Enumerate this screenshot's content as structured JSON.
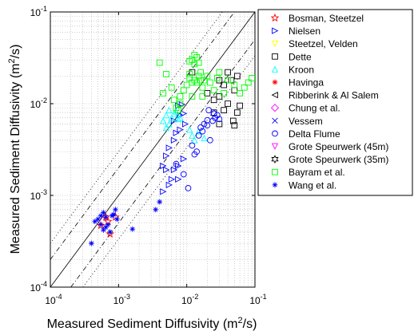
{
  "chart_data": {
    "type": "scatter",
    "xlabel": "Measured Sediment Diffusivity (m",
    "xlabel_sup": "2",
    "xlabel_tail": "/s)",
    "ylabel": "Measured Sediment Diffusivity (m",
    "ylabel_sup": "2",
    "ylabel_tail": "/s)",
    "x_scale": "log",
    "y_scale": "log",
    "xlim": [
      0.0001,
      0.1
    ],
    "ylim": [
      0.0001,
      0.1
    ],
    "grid": true,
    "legend_position": "outside-right",
    "x_ticks": [
      {
        "value": 0.0001,
        "base": "10",
        "exp": "-4"
      },
      {
        "value": 0.001,
        "base": "10",
        "exp": "-3"
      },
      {
        "value": 0.01,
        "base": "10",
        "exp": "-2"
      },
      {
        "value": 0.1,
        "base": "10",
        "exp": "-1"
      }
    ],
    "y_ticks": [
      {
        "value": 0.0001,
        "base": "10",
        "exp": "-4"
      },
      {
        "value": 0.001,
        "base": "10",
        "exp": "-3"
      },
      {
        "value": 0.01,
        "base": "10",
        "exp": "-2"
      },
      {
        "value": 0.1,
        "base": "10",
        "exp": "-1"
      }
    ],
    "reference_lines": [
      {
        "factor": 1,
        "style": "solid"
      },
      {
        "factor": 2,
        "style": "dashdot"
      },
      {
        "factor": 0.5,
        "style": "dashdot"
      },
      {
        "factor": 3,
        "style": "dotted"
      },
      {
        "factor": 0.3333,
        "style": "dotted"
      }
    ],
    "series": [
      {
        "name": "Bosman, Steetzel",
        "marker": "star5",
        "color": "#ff0000",
        "points": [
          [
            0.00055,
            0.00047
          ],
          [
            0.0007,
            0.00052
          ],
          [
            0.00075,
            0.00038
          ],
          [
            0.0009,
            0.00058
          ],
          [
            0.00065,
            0.00058
          ]
        ]
      },
      {
        "name": "Nielsen",
        "marker": "tri-right",
        "color": "#0000ff",
        "points": [
          [
            0.0045,
            0.0011
          ],
          [
            0.0055,
            0.0013
          ],
          [
            0.006,
            0.0015
          ],
          [
            0.005,
            0.0019
          ],
          [
            0.0065,
            0.0019
          ],
          [
            0.0075,
            0.0021
          ],
          [
            0.005,
            0.0027
          ],
          [
            0.0055,
            0.0033
          ],
          [
            0.0065,
            0.004
          ],
          [
            0.007,
            0.0048
          ],
          [
            0.008,
            0.0052
          ],
          [
            0.0065,
            0.0065
          ],
          [
            0.008,
            0.0075
          ],
          [
            0.009,
            0.0078
          ],
          [
            0.0075,
            0.0095
          ],
          [
            0.0085,
            0.0098
          ],
          [
            0.0095,
            0.006
          ],
          [
            0.009,
            0.0025
          ],
          [
            0.0075,
            0.0015
          ],
          [
            0.0045,
            0.0021
          ]
        ]
      },
      {
        "name": "Steetzel, Velden",
        "marker": "tri-down",
        "color": "#ffff00",
        "points": []
      },
      {
        "name": "Dette",
        "marker": "square",
        "color": "#000000",
        "points": [
          [
            0.012,
            0.022
          ],
          [
            0.02,
            0.013
          ],
          [
            0.025,
            0.011
          ],
          [
            0.03,
            0.012
          ],
          [
            0.035,
            0.016
          ],
          [
            0.04,
            0.01
          ],
          [
            0.048,
            0.0065
          ],
          [
            0.05,
            0.0058
          ],
          [
            0.055,
            0.008
          ],
          [
            0.06,
            0.0095
          ],
          [
            0.05,
            0.014
          ],
          [
            0.045,
            0.018
          ],
          [
            0.055,
            0.02
          ],
          [
            0.04,
            0.022
          ],
          [
            0.03,
            0.018
          ],
          [
            0.035,
            0.0085
          ],
          [
            0.025,
            0.008
          ],
          [
            0.03,
            0.006
          ]
        ]
      },
      {
        "name": "Kroon",
        "marker": "tri-up",
        "color": "#00ffff",
        "points": [
          [
            0.0045,
            0.0065
          ],
          [
            0.005,
            0.0075
          ],
          [
            0.0055,
            0.0085
          ],
          [
            0.006,
            0.007
          ],
          [
            0.0065,
            0.0078
          ],
          [
            0.007,
            0.0082
          ],
          [
            0.0075,
            0.0068
          ],
          [
            0.0055,
            0.006
          ],
          [
            0.005,
            0.0055
          ],
          [
            0.008,
            0.007
          ],
          [
            0.011,
            0.0052
          ],
          [
            0.012,
            0.0045
          ],
          [
            0.013,
            0.004
          ],
          [
            0.015,
            0.005
          ],
          [
            0.018,
            0.0042
          ]
        ]
      },
      {
        "name": "Havinga",
        "marker": "asterisk",
        "color": "#ff0000",
        "points": []
      },
      {
        "name": "Ribberink & Al Salem",
        "marker": "tri-left",
        "color": "#000000",
        "points": []
      },
      {
        "name": "Chung et al.",
        "marker": "diamond",
        "color": "#ff00ff",
        "points": []
      },
      {
        "name": "Vessem",
        "marker": "x",
        "color": "#0000ff",
        "points": []
      },
      {
        "name": "Delta Flume",
        "marker": "circle",
        "color": "#0000ff",
        "points": [
          [
            0.007,
            0.0022
          ],
          [
            0.009,
            0.0017
          ],
          [
            0.0105,
            0.0012
          ],
          [
            0.012,
            0.0035
          ],
          [
            0.013,
            0.0028
          ],
          [
            0.014,
            0.003
          ],
          [
            0.015,
            0.0045
          ],
          [
            0.016,
            0.0055
          ],
          [
            0.017,
            0.005
          ],
          [
            0.018,
            0.006
          ],
          [
            0.02,
            0.0058
          ],
          [
            0.022,
            0.004
          ],
          [
            0.024,
            0.0065
          ],
          [
            0.026,
            0.007
          ],
          [
            0.028,
            0.0075
          ],
          [
            0.03,
            0.0068
          ],
          [
            0.021,
            0.0085
          ],
          [
            0.025,
            0.0078
          ],
          [
            0.02,
            0.0066
          ]
        ]
      },
      {
        "name": "Grote Speurwerk (45m)",
        "marker": "tri-down",
        "color": "#ff00ff",
        "points": []
      },
      {
        "name": "Grote Speurwerk (35m)",
        "marker": "hexstar",
        "color": "#000000",
        "points": []
      },
      {
        "name": "Bayram et al.",
        "marker": "square",
        "color": "#00ff00",
        "points": [
          [
            0.004,
            0.028
          ],
          [
            0.005,
            0.021
          ],
          [
            0.0045,
            0.013
          ],
          [
            0.006,
            0.015
          ],
          [
            0.0065,
            0.011
          ],
          [
            0.007,
            0.009
          ],
          [
            0.0075,
            0.0085
          ],
          [
            0.008,
            0.012
          ],
          [
            0.009,
            0.014
          ],
          [
            0.01,
            0.016
          ],
          [
            0.011,
            0.019
          ],
          [
            0.012,
            0.03
          ],
          [
            0.013,
            0.034
          ],
          [
            0.014,
            0.032
          ],
          [
            0.015,
            0.028
          ],
          [
            0.016,
            0.022
          ],
          [
            0.018,
            0.018
          ],
          [
            0.02,
            0.02
          ],
          [
            0.022,
            0.017
          ],
          [
            0.025,
            0.014
          ],
          [
            0.028,
            0.019
          ],
          [
            0.03,
            0.022
          ],
          [
            0.035,
            0.013
          ],
          [
            0.04,
            0.018
          ],
          [
            0.05,
            0.016
          ],
          [
            0.06,
            0.013
          ],
          [
            0.07,
            0.015
          ],
          [
            0.08,
            0.017
          ],
          [
            0.09,
            0.019
          ],
          [
            0.011,
            0.021
          ],
          [
            0.012,
            0.017
          ],
          [
            0.013,
            0.018
          ],
          [
            0.014,
            0.017
          ],
          [
            0.015,
            0.02
          ],
          [
            0.016,
            0.018
          ],
          [
            0.017,
            0.015
          ],
          [
            0.012,
            0.012
          ],
          [
            0.011,
            0.029
          ],
          [
            0.013,
            0.027
          ],
          [
            0.017,
            0.012
          ],
          [
            0.008,
            0.01
          ]
        ]
      },
      {
        "name": "Wang et al.",
        "marker": "asterisk",
        "color": "#0000ff",
        "points": [
          [
            0.0004,
            0.0003
          ],
          [
            0.00045,
            0.00052
          ],
          [
            0.0005,
            0.00055
          ],
          [
            0.00055,
            0.0006
          ],
          [
            0.0006,
            0.00065
          ],
          [
            0.00065,
            0.00058
          ],
          [
            0.0007,
            0.00048
          ],
          [
            0.0008,
            0.0006
          ],
          [
            0.00085,
            0.00062
          ],
          [
            0.0009,
            0.0007
          ],
          [
            0.0006,
            0.00042
          ],
          [
            0.00065,
            0.00045
          ],
          [
            0.0016,
            0.00043
          ],
          [
            0.0035,
            0.0007
          ],
          [
            0.004,
            0.00085
          ],
          [
            0.00055,
            0.00048
          ],
          [
            0.00075,
            0.0004
          ],
          [
            0.00095,
            0.00055
          ]
        ]
      }
    ]
  }
}
